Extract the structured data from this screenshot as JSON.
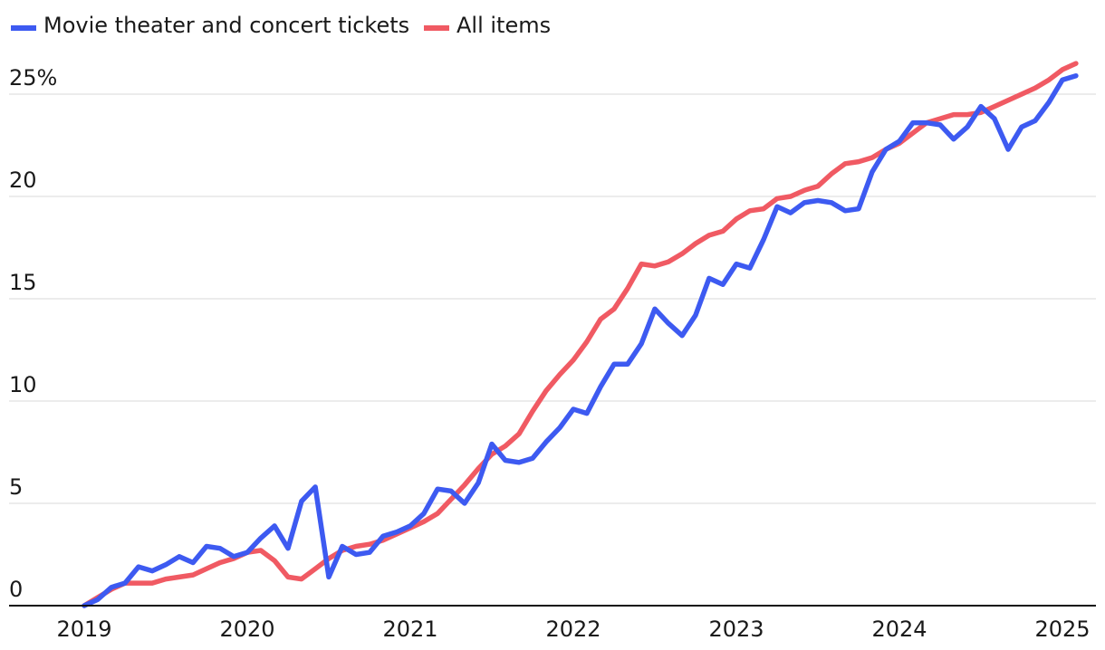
{
  "chart_data": {
    "type": "line",
    "title": "",
    "xlabel": "",
    "ylabel": "",
    "ylim": [
      0,
      26.8
    ],
    "y_ticks": [
      0,
      5,
      10,
      15,
      20,
      25
    ],
    "y_tick_labels": [
      "0",
      "5",
      "10",
      "15",
      "20",
      "25%"
    ],
    "x_ticks": [
      2019,
      2020,
      2021,
      2022,
      2023,
      2024,
      2025
    ],
    "x_tick_labels": [
      "2019",
      "2020",
      "2021",
      "2022",
      "2023",
      "2024",
      "2025"
    ],
    "grid": true,
    "legend_position": "top-left",
    "series": [
      {
        "name": "Movie theater and concert tickets",
        "color": "#3d5af1",
        "x": [
          2019.0,
          2019.083,
          2019.167,
          2019.25,
          2019.333,
          2019.417,
          2019.5,
          2019.583,
          2019.667,
          2019.75,
          2019.833,
          2019.917,
          2020.0,
          2020.083,
          2020.167,
          2020.25,
          2020.333,
          2020.417,
          2020.5,
          2020.583,
          2020.667,
          2020.75,
          2020.833,
          2020.917,
          2021.0,
          2021.083,
          2021.167,
          2021.25,
          2021.333,
          2021.417,
          2021.5,
          2021.583,
          2021.667,
          2021.75,
          2021.833,
          2021.917,
          2022.0,
          2022.083,
          2022.167,
          2022.25,
          2022.333,
          2022.417,
          2022.5,
          2022.583,
          2022.667,
          2022.75,
          2022.833,
          2022.917,
          2023.0,
          2023.083,
          2023.167,
          2023.25,
          2023.333,
          2023.417,
          2023.5,
          2023.583,
          2023.667,
          2023.75,
          2023.833,
          2023.917,
          2024.0,
          2024.083,
          2024.167,
          2024.25,
          2024.333,
          2024.417,
          2024.5,
          2024.583,
          2024.667,
          2024.75,
          2024.833,
          2024.917,
          2025.0,
          2025.083
        ],
        "values": [
          0.0,
          0.3,
          0.9,
          1.1,
          1.9,
          1.7,
          2.0,
          2.4,
          2.1,
          2.9,
          2.8,
          2.4,
          2.6,
          3.3,
          3.9,
          2.8,
          5.1,
          5.8,
          1.4,
          2.9,
          2.5,
          2.6,
          3.4,
          3.6,
          3.9,
          4.5,
          5.7,
          5.6,
          5.0,
          6.0,
          7.9,
          7.1,
          7.0,
          7.2,
          8.0,
          8.7,
          9.6,
          9.4,
          10.7,
          11.8,
          11.8,
          12.8,
          14.5,
          13.8,
          13.2,
          14.2,
          16.0,
          15.7,
          16.7,
          16.5,
          17.9,
          19.5,
          19.2,
          19.7,
          19.8,
          19.7,
          19.3,
          19.4,
          21.2,
          22.3,
          22.7,
          23.6,
          23.6,
          23.5,
          22.8,
          23.4,
          24.4,
          23.8,
          22.3,
          23.4,
          23.7,
          24.6,
          25.7,
          25.9
        ]
      },
      {
        "name": "All items",
        "color": "#f05a63",
        "x": [
          2019.0,
          2019.083,
          2019.167,
          2019.25,
          2019.333,
          2019.417,
          2019.5,
          2019.583,
          2019.667,
          2019.75,
          2019.833,
          2019.917,
          2020.0,
          2020.083,
          2020.167,
          2020.25,
          2020.333,
          2020.417,
          2020.5,
          2020.583,
          2020.667,
          2020.75,
          2020.833,
          2020.917,
          2021.0,
          2021.083,
          2021.167,
          2021.25,
          2021.333,
          2021.417,
          2021.5,
          2021.583,
          2021.667,
          2021.75,
          2021.833,
          2021.917,
          2022.0,
          2022.083,
          2022.167,
          2022.25,
          2022.333,
          2022.417,
          2022.5,
          2022.583,
          2022.667,
          2022.75,
          2022.833,
          2022.917,
          2023.0,
          2023.083,
          2023.167,
          2023.25,
          2023.333,
          2023.417,
          2023.5,
          2023.583,
          2023.667,
          2023.75,
          2023.833,
          2023.917,
          2024.0,
          2024.083,
          2024.167,
          2024.25,
          2024.333,
          2024.417,
          2024.5,
          2024.583,
          2024.667,
          2024.75,
          2024.833,
          2024.917,
          2025.0,
          2025.083
        ],
        "values": [
          0.0,
          0.4,
          0.8,
          1.1,
          1.1,
          1.1,
          1.3,
          1.4,
          1.5,
          1.8,
          2.1,
          2.3,
          2.6,
          2.7,
          2.2,
          1.4,
          1.3,
          1.8,
          2.3,
          2.7,
          2.9,
          3.0,
          3.2,
          3.5,
          3.8,
          4.1,
          4.5,
          5.2,
          5.9,
          6.7,
          7.4,
          7.8,
          8.4,
          9.5,
          10.5,
          11.3,
          12.0,
          12.9,
          14.0,
          14.5,
          15.5,
          16.7,
          16.6,
          16.8,
          17.2,
          17.7,
          18.1,
          18.3,
          18.9,
          19.3,
          19.4,
          19.9,
          20.0,
          20.3,
          20.5,
          21.1,
          21.6,
          21.7,
          21.9,
          22.3,
          22.6,
          23.1,
          23.6,
          23.8,
          24.0,
          24.0,
          24.1,
          24.4,
          24.7,
          25.0,
          25.3,
          25.7,
          26.2,
          26.5
        ]
      }
    ]
  }
}
